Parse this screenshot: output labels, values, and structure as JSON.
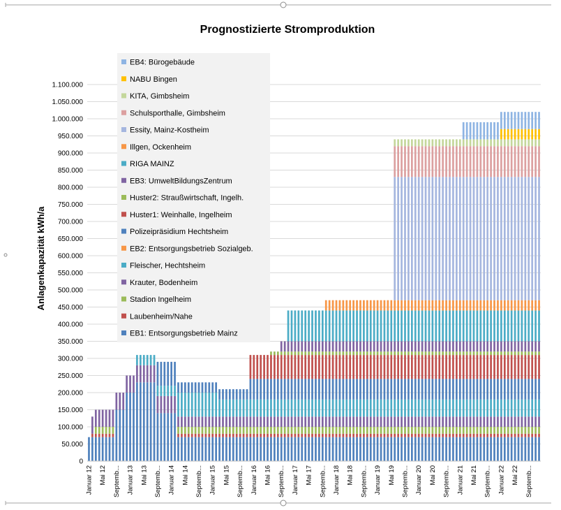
{
  "chart_data": {
    "type": "bar",
    "stacked": true,
    "title": "Prognostizierte Stromproduktion",
    "ylabel": "Anlagenkapazität kWh/a",
    "xlabel": "",
    "ylim": [
      0,
      1100000
    ],
    "ytick_step": 50000,
    "ytick_labels": [
      "0",
      "50.000",
      "100.000",
      "150.000",
      "200.000",
      "250.000",
      "300.000",
      "350.000",
      "400.000",
      "450.000",
      "500.000",
      "550.000",
      "600.000",
      "650.000",
      "700.000",
      "750.000",
      "800.000",
      "850.000",
      "900.000",
      "950.000",
      "1.000.000",
      "1.050.000",
      "1.100.000"
    ],
    "x_tick_labels": [
      "Januar 12",
      "Mai 12",
      "Septemb...",
      "Januar 13",
      "Mai 13",
      "Septemb...",
      "Januar 14",
      "Mai 14",
      "Septemb...",
      "Januar 15",
      "Mai 15",
      "Septemb...",
      "Januar 16",
      "Mai 16",
      "Septemb...",
      "Januar 17",
      "Mai 17",
      "Septemb...",
      "Januar 18",
      "Mai 18",
      "Septemb...",
      "Januar 19",
      "Mai 19",
      "Septemb...",
      "Januar 20",
      "Mai 20",
      "Septemb...",
      "Januar 21",
      "Mai 21",
      "Septemb...",
      "Januar 22",
      "Mai 22",
      "Septemb..."
    ],
    "start": "Januar 12",
    "months": 132,
    "grid": true,
    "legend_position": "top-left (inside plot)",
    "legend_order": [
      "EB4: Bürogebäude",
      "NABU Bingen",
      "KITA, Gimbsheim",
      "Schulsporthalle, Gimbsheim",
      "Essity, Mainz-Kostheim",
      "Illgen, Ockenheim",
      "RIGA MAINZ",
      "EB3: UmweltBildungsZentrum",
      "Huster2: Straußwirtschaft, Ingelh.",
      "Huster1: Weinhalle, Ingelheim",
      "Polizeipräsidium Hechtsheim",
      "EB2: Entsorgungsbetrieb Sozialgeb.",
      "Fleischer, Hechtsheim",
      "Krauter, Bodenheim",
      "Stadion Ingelheim",
      "Laubenheim/Nahe",
      "EB1: Entsorgungsbetrieb Mainz"
    ],
    "series": [
      {
        "name": "EB1: Entsorgungsbetrieb Mainz",
        "color": "#4f81bd",
        "value": 70000,
        "start_month": 0
      },
      {
        "name": "Laubenheim/Nahe",
        "color": "#c0504d",
        "value": 10000,
        "start_month": 1
      },
      {
        "name": "Stadion Ingelheim",
        "color": "#9bbb59",
        "value": 20000,
        "start_month": 2
      },
      {
        "name": "Krauter, Bodenheim",
        "color": "#8064a2",
        "value": 50000,
        "start_month": 1
      },
      {
        "name": "Fleischer, Hechtsheim",
        "color": "#4bacc6",
        "value": 30000,
        "start_month": 14
      },
      {
        "name": "EB2: Entsorgungsbetrieb Sozialgeb.",
        "color": "#f79646",
        "value": 0,
        "start_month": 200
      },
      {
        "name": "Polizeipräsidium Hechtsheim",
        "color": "#4f81bd",
        "value": 70000,
        "start_month": 20
      },
      {
        "name": "Huster1: Weinhalle, Ingelheim",
        "color": "#c0504d",
        "value": 10000,
        "start_month": 26
      },
      {
        "name": "Huster2: Straußwirtschaft, Ingelh.",
        "color": "#9bbb59",
        "value": 10000,
        "start_month": 53
      },
      {
        "name": "EB3: UmweltBildungsZentrum",
        "color": "#8064a2",
        "value": 30000,
        "start_month": 56
      },
      {
        "name": "RIGA MAINZ",
        "color": "#4bacc6",
        "value": 90000,
        "start_month": 58
      },
      {
        "name": "Illgen, Ockenheim",
        "color": "#f79646",
        "value": 30000,
        "start_month": 69
      },
      {
        "name": "Essity, Mainz-Kostheim",
        "color": "#a5b6df",
        "value": 360000,
        "start_month": 89
      },
      {
        "name": "Schulsporthalle, Gimbsheim",
        "color": "#dca0a0",
        "value": 90000,
        "start_month": 89
      },
      {
        "name": "KITA, Gimbsheim",
        "color": "#c4d79b",
        "value": 20000,
        "start_month": 89
      },
      {
        "name": "NABU Bingen",
        "color": "#ffc000",
        "value": 30000,
        "start_month": 120
      },
      {
        "name": "EB4: Bürogebäude",
        "color": "#8eb4e3",
        "value": 50000,
        "start_month": 109
      }
    ],
    "changes": [
      {
        "series": "Laubenheim/Nahe",
        "month": 8,
        "value": 0
      },
      {
        "series": "Stadion Ingelheim",
        "month": 8,
        "value": 0
      },
      {
        "series": "EB1: Entsorgungsbetrieb Mainz",
        "month": 8,
        "value": 150000
      },
      {
        "series": "EB1: Entsorgungsbetrieb Mainz",
        "month": 11,
        "value": 200000
      },
      {
        "series": "EB1: Entsorgungsbetrieb Mainz",
        "month": 14,
        "value": 230000
      },
      {
        "series": "EB1: Entsorgungsbetrieb Mainz",
        "month": 20,
        "value": 140000
      },
      {
        "series": "EB1: Entsorgungsbetrieb Mainz",
        "month": 26,
        "value": 70000
      },
      {
        "series": "Laubenheim/Nahe",
        "month": 26,
        "value": 10000
      },
      {
        "series": "Stadion Ingelheim",
        "month": 26,
        "value": 20000
      },
      {
        "series": "Krauter, Bodenheim",
        "month": 26,
        "value": 30000
      },
      {
        "series": "Fleischer, Hechtsheim",
        "month": 26,
        "value": 70000
      },
      {
        "series": "Polizeipräsidium Hechtsheim",
        "month": 26,
        "value": 30000
      },
      {
        "series": "Huster1: Weinhalle, Ingelheim",
        "month": 26,
        "value": 0
      },
      {
        "series": "Polizeipräsidium Hechtsheim",
        "month": 38,
        "value": 30000
      },
      {
        "series": "Huster1: Weinhalle, Ingelheim",
        "month": 38,
        "value": 0
      },
      {
        "series": "Fleischer, Hechtsheim",
        "month": 38,
        "value": 50000
      },
      {
        "series": "Polizeipräsidium Hechtsheim",
        "month": 47,
        "value": 60000
      },
      {
        "series": "Huster1: Weinhalle, Ingelheim",
        "month": 47,
        "value": 70000
      }
    ]
  },
  "window": {
    "top_handle": "",
    "bottom_handle": ""
  }
}
